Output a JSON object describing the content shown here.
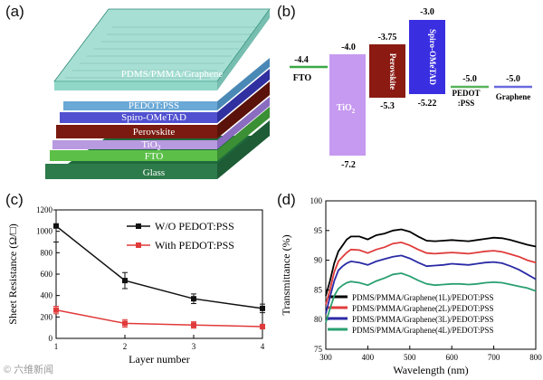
{
  "panel_labels": {
    "a": "(a)",
    "b": "(b)",
    "c": "(c)",
    "d": "(d)"
  },
  "watermark": "© 六维新闻",
  "panel_a": {
    "layers": [
      {
        "label": "PDMS/PMMA/Graphene",
        "color": "#5fc4b0"
      },
      {
        "label": "PEDOT:PSS",
        "color": "#6aa8d6"
      },
      {
        "label": "Spiro-OMeTAD",
        "color": "#5a5ad8"
      },
      {
        "label": "Perovskite",
        "color": "#8a1e12"
      },
      {
        "label": "TiO",
        "sub": "2",
        "color": "#b89ae0"
      },
      {
        "label": "FTO",
        "color": "#5cc048"
      },
      {
        "label": "Glass",
        "color": "#2d7a4a"
      }
    ]
  },
  "panel_b": {
    "levels": [
      {
        "name": "FTO",
        "value": "-4.4"
      },
      {
        "name": "TiO",
        "sub": "2",
        "top": "-4.0",
        "bottom": "-7.2"
      },
      {
        "name": "Perovskite",
        "top": "-3.75",
        "bottom": "-5.3"
      },
      {
        "name": "Spiro-OMeTAD",
        "top": "-3.0",
        "bottom": "-5.22"
      },
      {
        "name": "PEDOT\n:PSS",
        "value": "-5.0"
      },
      {
        "name": "Graphene",
        "value": "-5.0"
      }
    ],
    "colors": {
      "fto": "#3aa845",
      "tio2": "#c69af0",
      "perovskite": "#8a1a12",
      "spiro": "#3a2fe0",
      "pedot": "#57b35a",
      "graphene": "#6a6ae0"
    }
  },
  "chart_data": [
    {
      "type": "line",
      "title": "",
      "xlabel": "Layer number",
      "ylabel": "Sheet Resistance (Ω/□)",
      "xlim": [
        1,
        4
      ],
      "ylim": [
        0,
        1200
      ],
      "x_ticks": [
        "1",
        "2",
        "3",
        "4"
      ],
      "y_ticks": [
        "0",
        "200",
        "400",
        "600",
        "800",
        "1000",
        "1200"
      ],
      "legend_position": "top-right",
      "series": [
        {
          "name": "W/O PEDOT:PSS",
          "color": "#111111",
          "x": [
            1,
            2,
            3,
            4
          ],
          "values": [
            1050,
            540,
            370,
            280
          ],
          "err": [
            150,
            75,
            45,
            40
          ]
        },
        {
          "name": "With PEDOT:PSS",
          "color": "#e03a3a",
          "x": [
            1,
            2,
            3,
            4
          ],
          "values": [
            265,
            140,
            125,
            110
          ],
          "err": [
            35,
            35,
            30,
            22
          ]
        }
      ]
    },
    {
      "type": "line",
      "title": "",
      "xlabel": "Wavelength (nm)",
      "ylabel": "Transmittance (%)",
      "xlim": [
        300,
        800
      ],
      "ylim": [
        75,
        100
      ],
      "x_ticks": [
        "300",
        "400",
        "500",
        "600",
        "700",
        "800"
      ],
      "y_ticks": [
        "75",
        "80",
        "85",
        "90",
        "95",
        "100"
      ],
      "legend_position": "bottom-right",
      "series": [
        {
          "name": "PDMS/PMMA/Graphene(1L)/PEDOT:PSS",
          "color": "#000000",
          "x": [
            300,
            310,
            320,
            330,
            340,
            350,
            360,
            380,
            400,
            420,
            440,
            460,
            480,
            500,
            520,
            540,
            560,
            580,
            600,
            620,
            640,
            660,
            680,
            700,
            720,
            740,
            760,
            780,
            800
          ],
          "values": [
            84.0,
            86.5,
            89.5,
            91.5,
            92.5,
            93.5,
            94.0,
            94.0,
            93.5,
            94.2,
            94.5,
            95.0,
            95.2,
            94.8,
            94.0,
            93.3,
            93.2,
            93.3,
            93.4,
            93.3,
            93.2,
            93.4,
            93.6,
            93.8,
            93.7,
            93.4,
            93.0,
            92.6,
            92.3
          ]
        },
        {
          "name": "PDMS/PMMA/Graphene(2L)/PEDOT:PSS",
          "color": "#e03c3c",
          "x": [
            300,
            310,
            320,
            330,
            340,
            350,
            360,
            380,
            400,
            420,
            440,
            460,
            480,
            500,
            520,
            540,
            560,
            580,
            600,
            620,
            640,
            660,
            680,
            700,
            720,
            740,
            760,
            780,
            800
          ],
          "values": [
            82.5,
            85.0,
            88.0,
            89.8,
            90.6,
            91.3,
            91.8,
            91.7,
            91.2,
            91.8,
            92.2,
            92.8,
            93.0,
            92.5,
            91.8,
            91.2,
            91.1,
            91.2,
            91.3,
            91.2,
            91.1,
            91.3,
            91.5,
            91.6,
            91.4,
            91.0,
            90.6,
            90.0,
            89.6
          ]
        },
        {
          "name": "PDMS/PMMA/Graphene(3L)/PEDOT:PSS",
          "color": "#2a2aa6",
          "x": [
            300,
            310,
            320,
            330,
            340,
            350,
            360,
            380,
            400,
            420,
            440,
            460,
            480,
            500,
            520,
            540,
            560,
            580,
            600,
            620,
            640,
            660,
            680,
            700,
            720,
            740,
            760,
            780,
            800
          ],
          "values": [
            81.0,
            83.8,
            86.5,
            88.3,
            89.0,
            89.5,
            89.8,
            89.6,
            89.2,
            89.8,
            90.2,
            90.6,
            90.8,
            90.3,
            89.6,
            89.0,
            89.1,
            89.2,
            89.4,
            89.3,
            89.2,
            89.4,
            89.6,
            89.7,
            89.5,
            89.0,
            88.4,
            87.6,
            86.8
          ]
        },
        {
          "name": "PDMS/PMMA/Graphene(4L)/PEDOT:PSS",
          "color": "#2aa070",
          "x": [
            300,
            310,
            320,
            330,
            340,
            350,
            360,
            380,
            400,
            420,
            440,
            460,
            480,
            500,
            520,
            540,
            560,
            580,
            600,
            620,
            640,
            660,
            680,
            700,
            720,
            740,
            760,
            780,
            800
          ],
          "values": [
            79.5,
            81.8,
            84.0,
            85.2,
            85.8,
            86.2,
            86.4,
            86.2,
            85.8,
            86.5,
            87.0,
            87.6,
            87.8,
            87.3,
            86.6,
            86.0,
            85.8,
            85.9,
            86.0,
            86.0,
            85.9,
            86.0,
            86.2,
            86.3,
            86.2,
            85.9,
            85.6,
            85.3,
            84.8
          ]
        }
      ]
    }
  ]
}
